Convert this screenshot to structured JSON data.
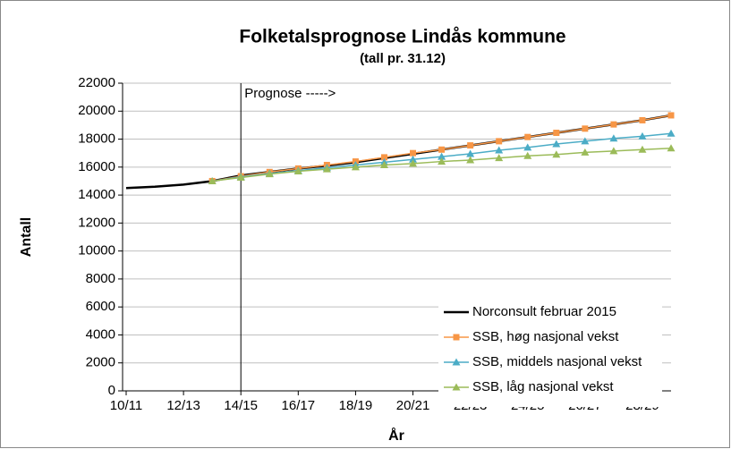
{
  "chart_data": {
    "type": "line",
    "title": "Folketalsprognose Lindås kommune",
    "subtitle": "(tall pr. 31.12)",
    "x_label": "År",
    "y_label": "Antall",
    "annotation": {
      "text": "Prognose ----->",
      "x": "14/15"
    },
    "categories": [
      "10/11",
      null,
      "12/13",
      null,
      "14/15",
      null,
      "16/17",
      null,
      "18/19",
      null,
      "20/21",
      null,
      "22/23",
      null,
      "24/25",
      null,
      "26/27",
      null,
      "28/29",
      null
    ],
    "ylim": [
      0,
      22000
    ],
    "yticks": [
      0,
      2000,
      4000,
      6000,
      8000,
      10000,
      12000,
      14000,
      16000,
      18000,
      20000,
      22000
    ],
    "grid": true,
    "legend": "lower right",
    "series": [
      {
        "name": "Norconsult februar 2015",
        "color": "#000000",
        "marker": "none",
        "values": [
          14500,
          14600,
          14750,
          15000,
          15400,
          15650,
          15900,
          16100,
          16350,
          16650,
          16950,
          17250,
          17550,
          17850,
          18150,
          18450,
          18750,
          19050,
          19350,
          19700
        ]
      },
      {
        "name": "SSB, høg nasjonal vekst",
        "color": "#f79646",
        "marker": "square",
        "values": [
          null,
          null,
          null,
          15000,
          15350,
          15650,
          15900,
          16150,
          16400,
          16700,
          17000,
          17250,
          17550,
          17850,
          18150,
          18450,
          18750,
          19050,
          19350,
          19700
        ]
      },
      {
        "name": "SSB, middels nasjonal vekst",
        "color": "#4bacc6",
        "marker": "triangle",
        "values": [
          null,
          null,
          null,
          15000,
          15300,
          15550,
          15750,
          15950,
          16150,
          16350,
          16550,
          16750,
          16950,
          17200,
          17400,
          17650,
          17850,
          18050,
          18200,
          18400
        ]
      },
      {
        "name": "SSB, låg nasjonal vekst",
        "color": "#9bbb59",
        "marker": "triangle",
        "values": [
          null,
          null,
          null,
          15000,
          15250,
          15500,
          15700,
          15850,
          16000,
          16150,
          16250,
          16400,
          16500,
          16650,
          16800,
          16900,
          17050,
          17150,
          17250,
          17350
        ]
      }
    ]
  }
}
